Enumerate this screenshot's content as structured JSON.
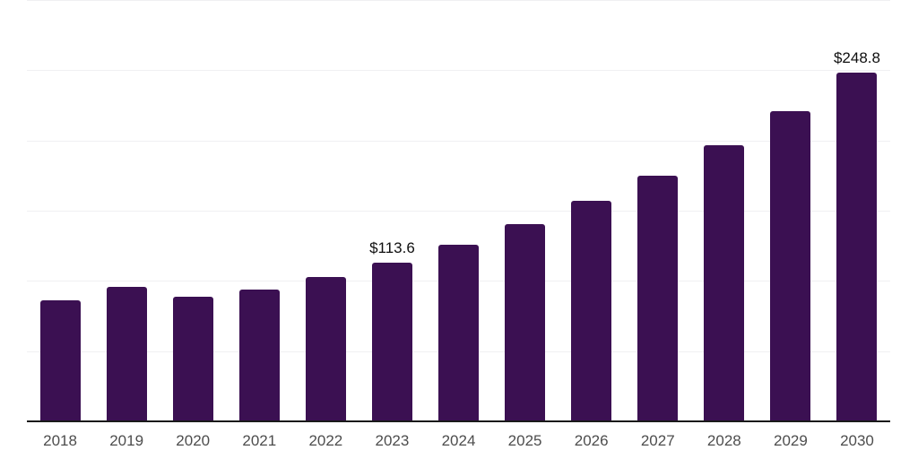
{
  "chart_data": {
    "type": "bar",
    "title": "",
    "xlabel": "",
    "ylabel": "",
    "categories": [
      "2018",
      "2019",
      "2020",
      "2021",
      "2022",
      "2023",
      "2024",
      "2025",
      "2026",
      "2027",
      "2028",
      "2029",
      "2030"
    ],
    "values": [
      86.9,
      96.6,
      89.3,
      94.2,
      103.3,
      113.6,
      126.3,
      141.0,
      157.6,
      175.5,
      197.0,
      221.4,
      248.8
    ],
    "data_labels": [
      null,
      null,
      null,
      null,
      null,
      "$113.6",
      null,
      null,
      null,
      null,
      null,
      null,
      "$248.8"
    ],
    "ylim": [
      0,
      300
    ],
    "grid": true,
    "gridline_values": [
      50,
      100,
      150,
      200,
      250,
      300
    ],
    "y_axis_labels_visible": false,
    "legend": false,
    "legend_position": "none"
  },
  "style": {
    "bar_color": "#3B1052",
    "grid_color": "#F0F0F2",
    "axis_color": "#1A1A1A",
    "tick_label_color": "#4D4D4D",
    "data_label_color": "#0F0F0F",
    "background_color": "#FFFFFF"
  }
}
